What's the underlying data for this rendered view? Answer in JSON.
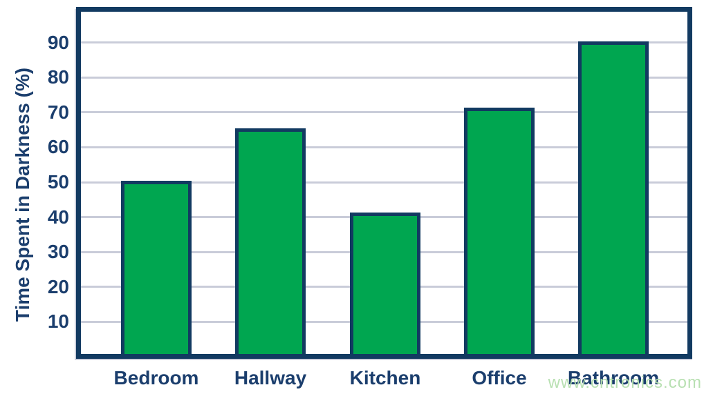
{
  "chart_data": {
    "type": "bar",
    "categories": [
      "Bedroom",
      "Hallway",
      "Kitchen",
      "Office",
      "Bathroom"
    ],
    "values": [
      50,
      65,
      41,
      71,
      90
    ],
    "title": "",
    "xlabel": "",
    "ylabel": "Time Spent in Darkness (%)",
    "ylim": [
      0,
      100
    ],
    "yticks": [
      10,
      20,
      30,
      40,
      50,
      60,
      70,
      80,
      90
    ],
    "grid": true,
    "legend": "none",
    "bar_color": "#00a650",
    "bar_border_color": "#123a61",
    "gridline_color": "#c9ccd9",
    "text_color": "#1b3e6d"
  },
  "watermark": {
    "text": "www.cntronics.com",
    "color": "#b5dfae"
  }
}
